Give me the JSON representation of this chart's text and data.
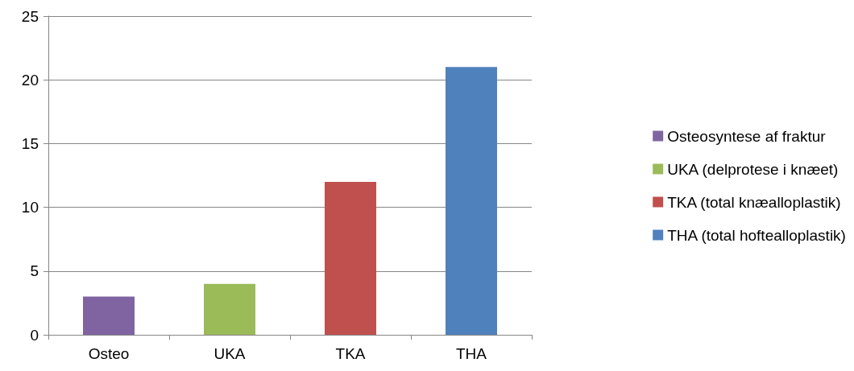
{
  "chart_data": {
    "type": "bar",
    "categories": [
      "Osteo",
      "UKA",
      "TKA",
      "THA"
    ],
    "series": [
      {
        "name": "Osteosyntese af fraktur",
        "color": "#8064a2",
        "values": [
          3,
          null,
          null,
          null
        ]
      },
      {
        "name": "UKA (delprotese i knæet)",
        "color": "#9bbb59",
        "values": [
          null,
          4,
          null,
          null
        ]
      },
      {
        "name": "TKA (total knæalloplastik)",
        "color": "#c0504d",
        "values": [
          null,
          null,
          12,
          null
        ]
      },
      {
        "name": "THA (total hoftealloplastik)",
        "color": "#4f81bd",
        "values": [
          null,
          null,
          null,
          21
        ]
      }
    ],
    "stacked": true,
    "ylim": [
      0,
      25
    ],
    "yticks": [
      0,
      5,
      10,
      15,
      20,
      25
    ],
    "grid": "y",
    "legend": "right"
  }
}
